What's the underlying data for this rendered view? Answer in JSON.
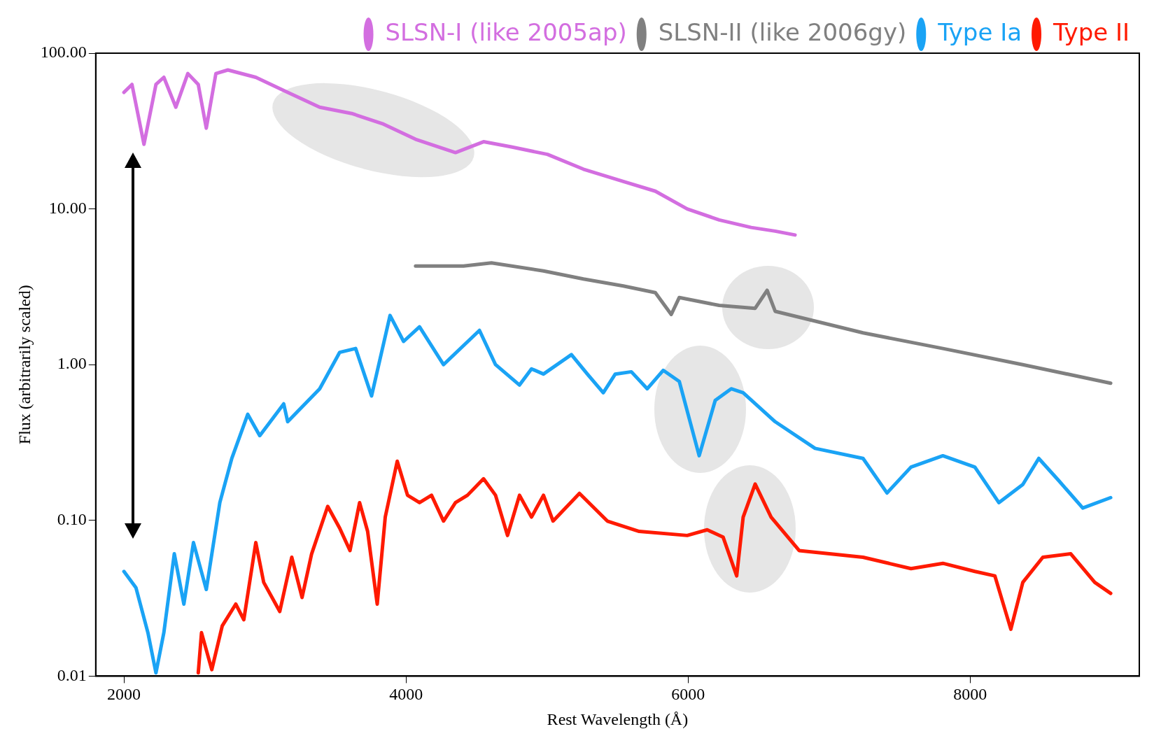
{
  "chart_data": {
    "type": "line",
    "xlabel": "Rest Wavelength (Å)",
    "ylabel": "Flux (arbitrarily scaled)",
    "log": "y",
    "grid": false,
    "legend": "top right",
    "marker": "none",
    "line_style": "solid",
    "xlim": [
      1800,
      9200
    ],
    "xticks": [
      2000,
      4000,
      6000,
      8000
    ],
    "ylim": [
      0.01,
      100
    ],
    "yticks": [
      {
        "value": 0.01,
        "label": "0.01"
      },
      {
        "value": 0.1,
        "label": "0.10"
      },
      {
        "value": 1,
        "label": "1.00"
      },
      {
        "value": 10,
        "label": "10.00"
      },
      {
        "value": 100,
        "label": "100.00"
      }
    ],
    "series": [
      {
        "name": "SLSN-I (like 2005ap)",
        "color": "#d36ee0",
        "x": [
          2000,
          2057,
          2142,
          2227,
          2283,
          2368,
          2453,
          2527,
          2584,
          2652,
          2737,
          2935,
          3161,
          3388,
          3615,
          3841,
          4068,
          4351,
          4550,
          4748,
          5003,
          5258,
          5541,
          5768,
          5994,
          6221,
          6448,
          6618,
          6759
        ],
        "values": [
          56,
          63,
          26,
          63,
          70,
          45,
          74,
          63,
          33,
          74,
          78,
          70,
          56,
          45,
          41,
          35,
          28,
          23,
          27,
          25,
          22.4,
          18,
          15,
          13,
          10,
          8.5,
          7.6,
          7.2,
          6.8
        ]
      },
      {
        "name": "SLSN-II (like 2006gy)",
        "color": "#808080",
        "x": [
          4068,
          4408,
          4606,
          4975,
          5258,
          5541,
          5768,
          5881,
          5938,
          6221,
          6476,
          6561,
          6618,
          6958,
          7241,
          7807,
          8374,
          8997
        ],
        "values": [
          4.3,
          4.3,
          4.5,
          4.0,
          3.55,
          3.2,
          2.9,
          2.1,
          2.7,
          2.4,
          2.3,
          3.0,
          2.2,
          1.85,
          1.6,
          1.27,
          1.0,
          0.76
        ]
      },
      {
        "name": "Type Ia",
        "color": "#1aa3f5",
        "x": [
          2000,
          2085,
          2170,
          2227,
          2283,
          2357,
          2425,
          2493,
          2584,
          2680,
          2765,
          2878,
          2963,
          3133,
          3161,
          3388,
          3530,
          3643,
          3756,
          3887,
          3983,
          4096,
          4266,
          4521,
          4635,
          4805,
          4890,
          4975,
          5173,
          5286,
          5399,
          5484,
          5598,
          5711,
          5824,
          5938,
          6079,
          6193,
          6306,
          6391,
          6618,
          6901,
          7241,
          7411,
          7581,
          7807,
          8034,
          8204,
          8374,
          8487,
          8629,
          8799,
          8997
        ],
        "values": [
          0.047,
          0.037,
          0.019,
          0.0105,
          0.019,
          0.061,
          0.029,
          0.072,
          0.036,
          0.13,
          0.25,
          0.48,
          0.35,
          0.56,
          0.43,
          0.7,
          1.2,
          1.27,
          0.63,
          2.07,
          1.41,
          1.75,
          1.0,
          1.66,
          1.0,
          0.74,
          0.94,
          0.87,
          1.16,
          0.87,
          0.66,
          0.87,
          0.9,
          0.7,
          0.92,
          0.78,
          0.26,
          0.59,
          0.7,
          0.66,
          0.43,
          0.29,
          0.25,
          0.15,
          0.22,
          0.26,
          0.22,
          0.13,
          0.17,
          0.25,
          0.18,
          0.12,
          0.14
        ]
      },
      {
        "name": "Type II",
        "color": "#ff1a00",
        "x": [
          2527,
          2550,
          2623,
          2697,
          2793,
          2850,
          2935,
          2991,
          3105,
          3190,
          3263,
          3331,
          3445,
          3530,
          3603,
          3671,
          3728,
          3796,
          3853,
          3938,
          4011,
          4096,
          4181,
          4266,
          4351,
          4436,
          4550,
          4635,
          4720,
          4805,
          4890,
          4975,
          5043,
          5230,
          5428,
          5654,
          5994,
          6136,
          6249,
          6345,
          6391,
          6476,
          6589,
          6788,
          7241,
          7581,
          7807,
          8034,
          8176,
          8289,
          8374,
          8516,
          8714,
          8884,
          8997
        ],
        "values": [
          0.0105,
          0.019,
          0.011,
          0.021,
          0.029,
          0.023,
          0.072,
          0.04,
          0.026,
          0.058,
          0.032,
          0.061,
          0.123,
          0.089,
          0.064,
          0.13,
          0.085,
          0.029,
          0.105,
          0.24,
          0.145,
          0.13,
          0.145,
          0.099,
          0.13,
          0.145,
          0.185,
          0.145,
          0.08,
          0.145,
          0.105,
          0.145,
          0.099,
          0.149,
          0.099,
          0.085,
          0.08,
          0.087,
          0.078,
          0.044,
          0.105,
          0.171,
          0.105,
          0.064,
          0.058,
          0.049,
          0.053,
          0.047,
          0.044,
          0.02,
          0.04,
          0.058,
          0.061,
          0.04,
          0.034
        ]
      }
    ]
  }
}
